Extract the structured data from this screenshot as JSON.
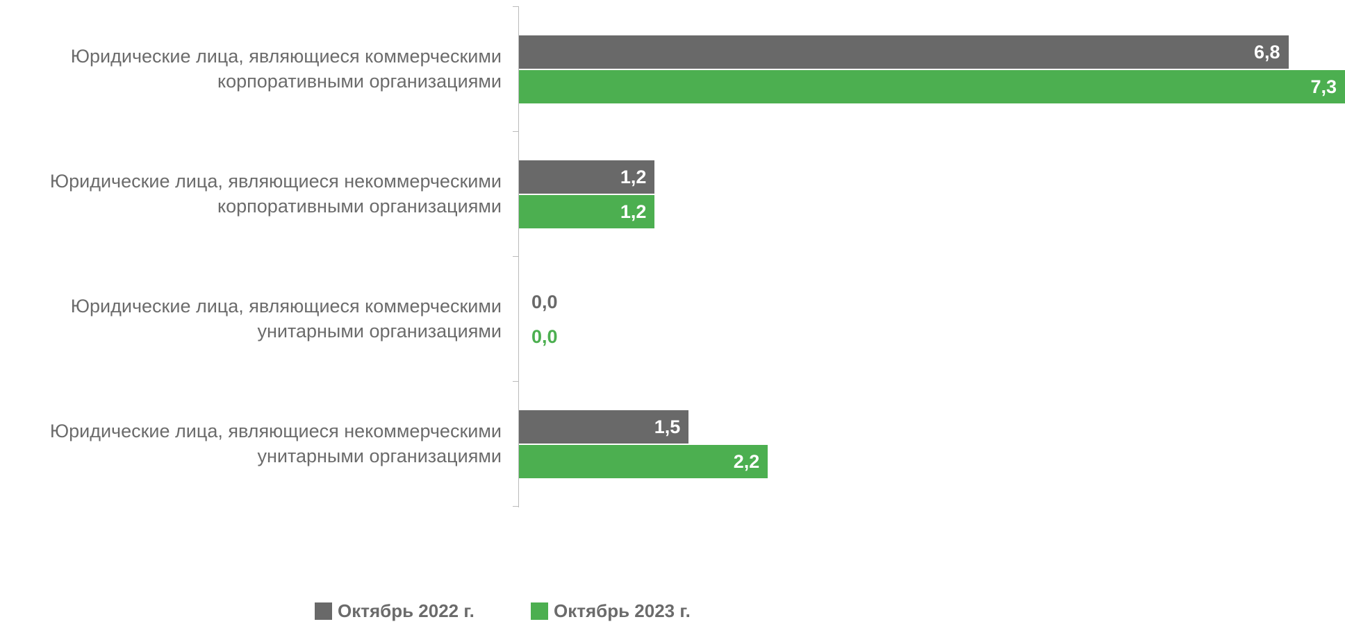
{
  "chart_data": {
    "type": "hbar",
    "categories": [
      "Юридические лица, являющиеся коммерческими\nкорпоративными организациями",
      "Юридические лица, являющиеся некоммерческими\nкорпоративными организациями",
      "Юридические лица, являющиеся коммерческими\nунитарными организациями",
      "Юридические лица, являющиеся некоммерческими\nунитарными организациями"
    ],
    "series": [
      {
        "name": "Октябрь 2022 г.",
        "color": "#696969",
        "values": [
          6.8,
          1.2,
          0,
          1.5
        ],
        "value_labels": [
          "6,8",
          "1,2",
          "0,0",
          "1,5"
        ]
      },
      {
        "name": "Октябрь 2023 г.",
        "color": "#4caf50",
        "values": [
          7.3,
          1.2,
          0,
          2.2
        ],
        "value_labels": [
          "7,3",
          "1,2",
          "0,0",
          "2,2"
        ]
      }
    ]
  }
}
